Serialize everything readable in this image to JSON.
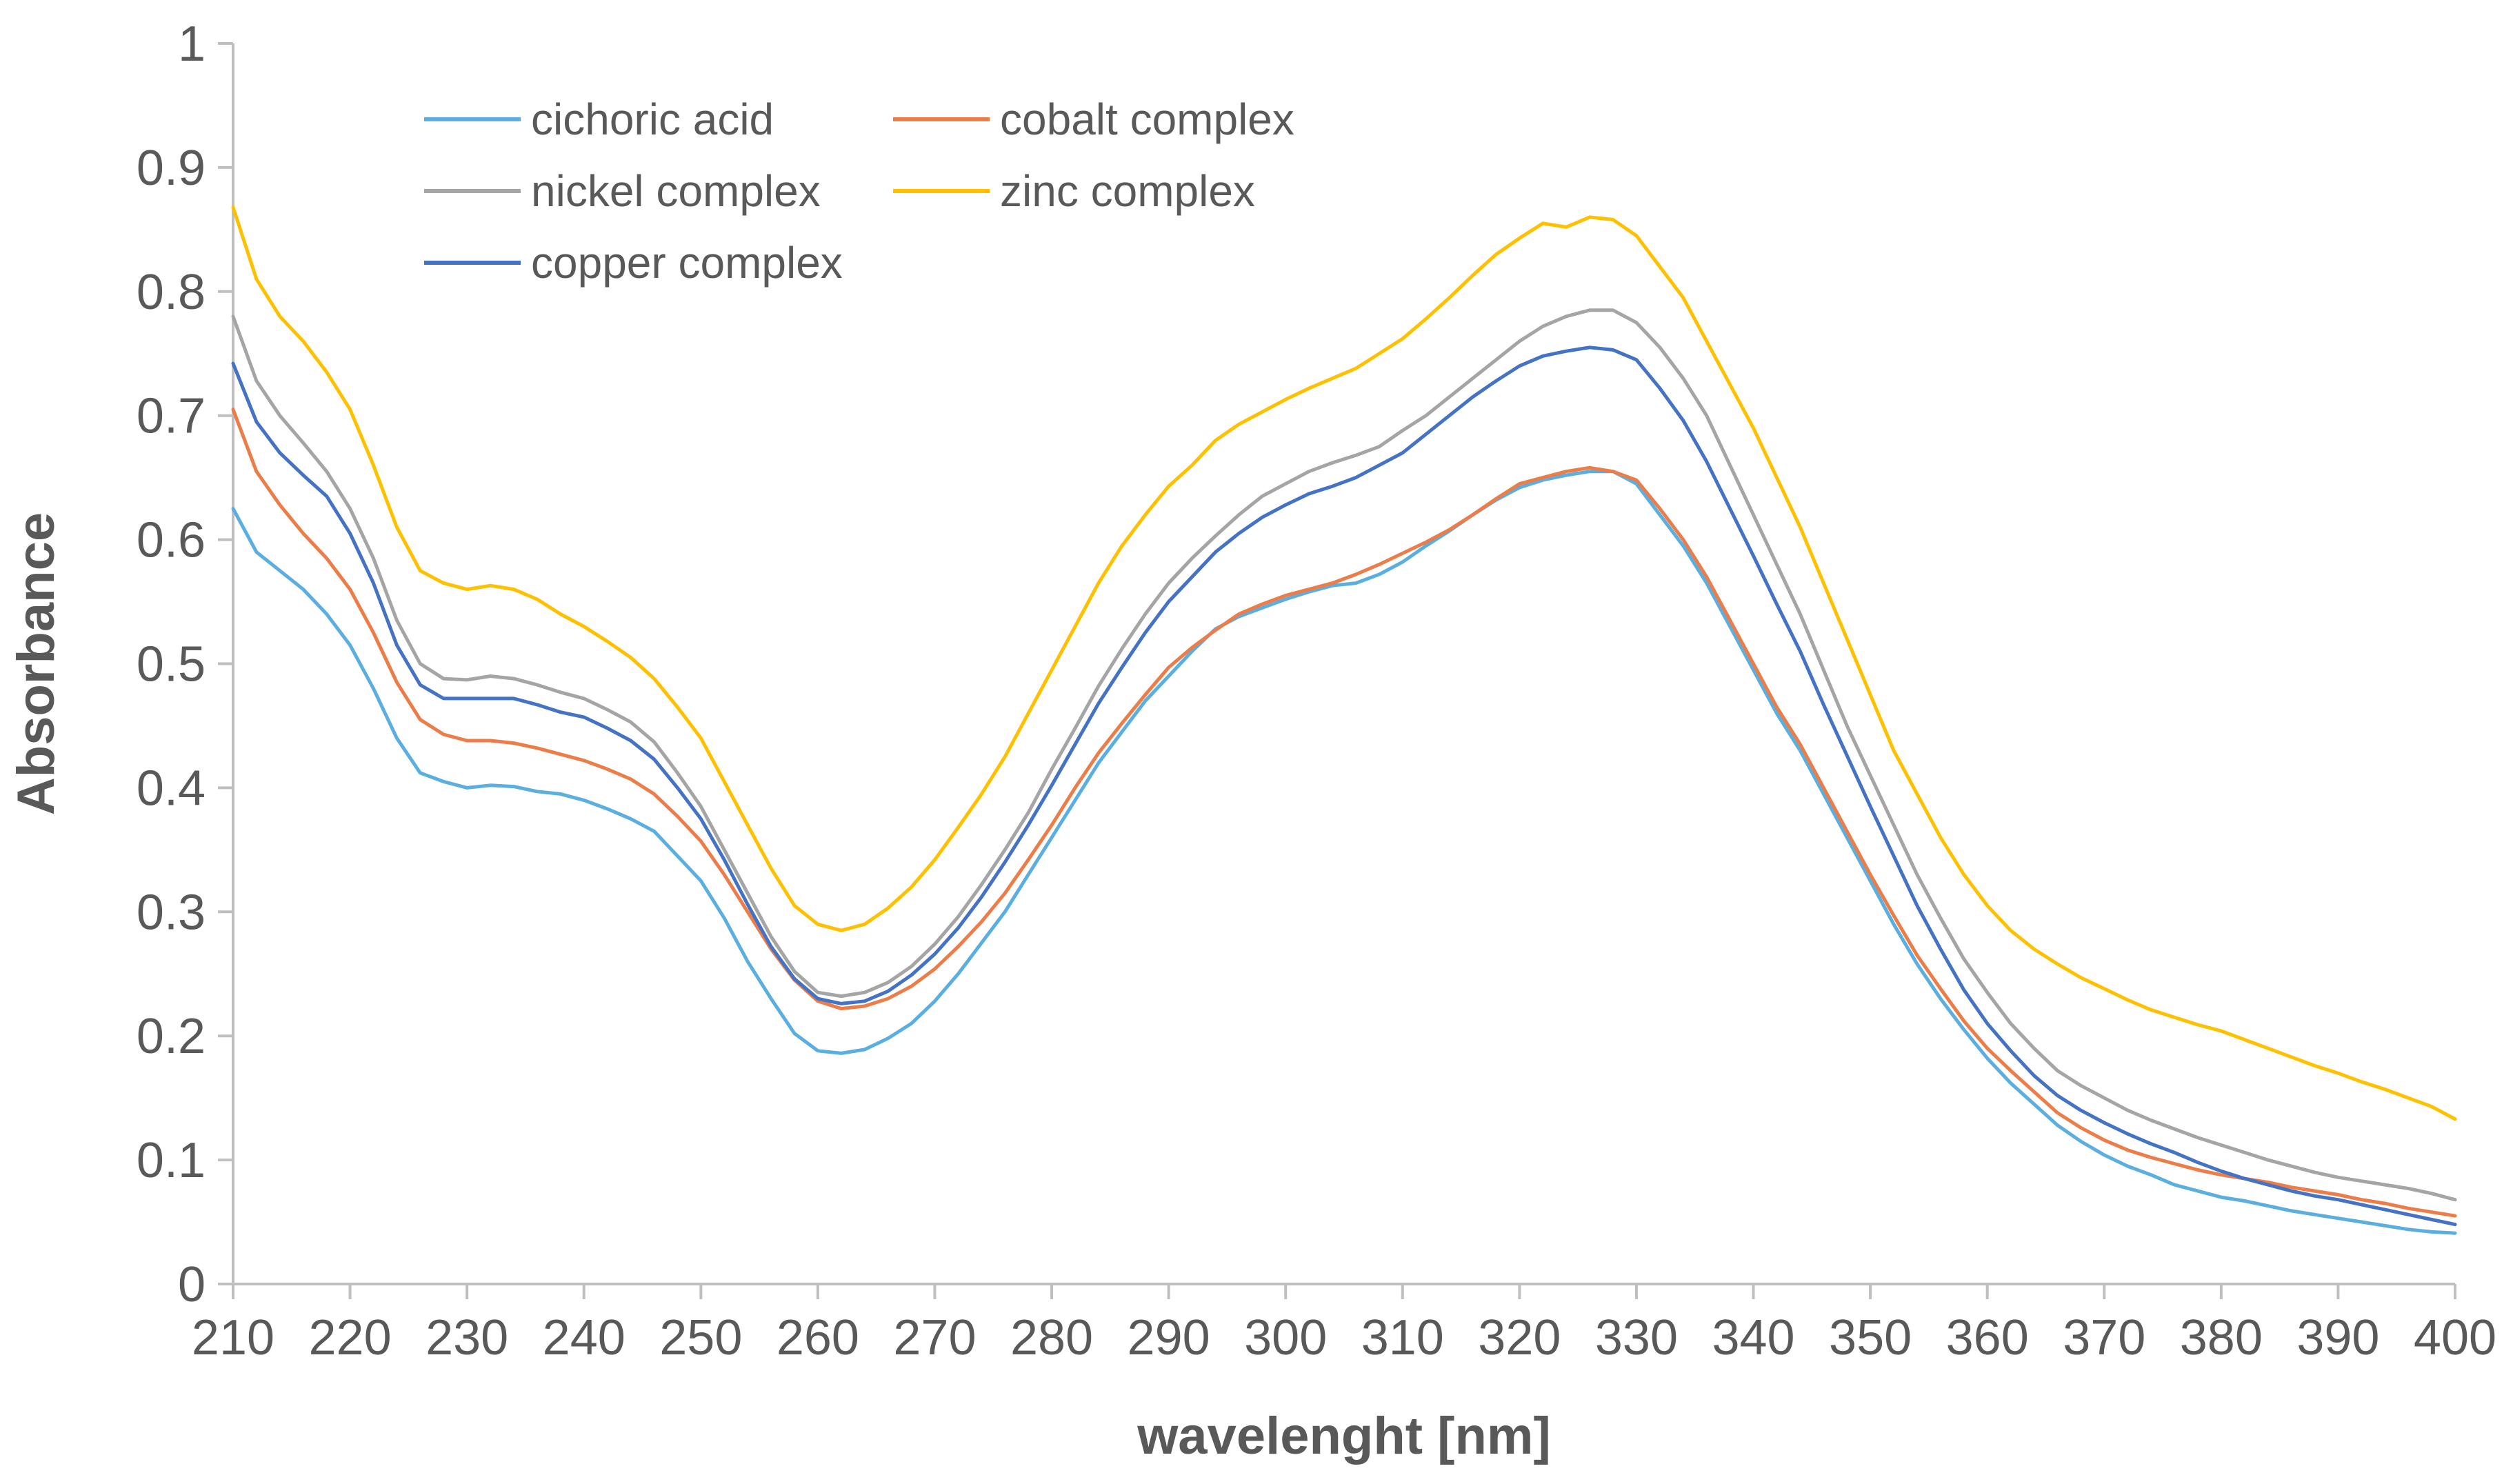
{
  "chart_data": {
    "type": "line",
    "title": "",
    "xlabel": "wavelenght [nm]",
    "ylabel": "Absorbance",
    "xlim": [
      210,
      400
    ],
    "ylim": [
      0,
      1
    ],
    "x_ticks": [
      210,
      220,
      230,
      240,
      250,
      260,
      270,
      280,
      290,
      300,
      310,
      320,
      330,
      340,
      350,
      360,
      370,
      380,
      390,
      400
    ],
    "y_ticks": [
      "0",
      "0.1",
      "0.2",
      "0.3",
      "0.4",
      "0.5",
      "0.6",
      "0.7",
      "0.8",
      "0.9",
      "1"
    ],
    "grid": false,
    "legend_position": "top-left",
    "x": [
      210,
      212,
      214,
      216,
      218,
      220,
      222,
      224,
      226,
      228,
      230,
      232,
      234,
      236,
      238,
      240,
      242,
      244,
      246,
      248,
      250,
      252,
      254,
      256,
      258,
      260,
      262,
      264,
      266,
      268,
      270,
      272,
      274,
      276,
      278,
      280,
      282,
      284,
      286,
      288,
      290,
      292,
      294,
      296,
      298,
      300,
      302,
      304,
      306,
      308,
      310,
      312,
      314,
      316,
      318,
      320,
      322,
      324,
      326,
      328,
      330,
      332,
      334,
      336,
      338,
      340,
      342,
      344,
      346,
      348,
      350,
      352,
      354,
      356,
      358,
      360,
      362,
      364,
      366,
      368,
      370,
      372,
      374,
      376,
      378,
      380,
      382,
      384,
      386,
      388,
      390,
      392,
      394,
      396,
      398,
      400
    ],
    "series": [
      {
        "name": "cichoric acid",
        "color": "#5aaee0",
        "values": [
          0.625,
          0.59,
          0.575,
          0.56,
          0.54,
          0.515,
          0.48,
          0.44,
          0.412,
          0.405,
          0.4,
          0.402,
          0.401,
          0.397,
          0.395,
          0.39,
          0.383,
          0.375,
          0.365,
          0.345,
          0.325,
          0.295,
          0.26,
          0.23,
          0.202,
          0.188,
          0.186,
          0.189,
          0.198,
          0.21,
          0.228,
          0.25,
          0.275,
          0.3,
          0.33,
          0.36,
          0.39,
          0.42,
          0.445,
          0.47,
          0.49,
          0.51,
          0.528,
          0.538,
          0.545,
          0.552,
          0.558,
          0.563,
          0.565,
          0.572,
          0.582,
          0.595,
          0.607,
          0.62,
          0.632,
          0.642,
          0.648,
          0.652,
          0.655,
          0.655,
          0.645,
          0.62,
          0.595,
          0.565,
          0.53,
          0.495,
          0.46,
          0.43,
          0.395,
          0.36,
          0.325,
          0.29,
          0.258,
          0.23,
          0.205,
          0.182,
          0.162,
          0.145,
          0.128,
          0.115,
          0.104,
          0.095,
          0.088,
          0.08,
          0.075,
          0.07,
          0.067,
          0.063,
          0.059,
          0.056,
          0.053,
          0.05,
          0.047,
          0.044,
          0.042,
          0.041
        ]
      },
      {
        "name": "cobalt complex",
        "color": "#ed7d48",
        "values": [
          0.705,
          0.655,
          0.628,
          0.605,
          0.585,
          0.56,
          0.525,
          0.485,
          0.455,
          0.443,
          0.438,
          0.438,
          0.436,
          0.432,
          0.427,
          0.422,
          0.415,
          0.407,
          0.395,
          0.377,
          0.357,
          0.33,
          0.3,
          0.27,
          0.245,
          0.228,
          0.222,
          0.224,
          0.23,
          0.24,
          0.254,
          0.272,
          0.292,
          0.315,
          0.342,
          0.37,
          0.4,
          0.428,
          0.452,
          0.475,
          0.497,
          0.513,
          0.527,
          0.54,
          0.548,
          0.555,
          0.56,
          0.565,
          0.572,
          0.58,
          0.589,
          0.598,
          0.608,
          0.62,
          0.633,
          0.645,
          0.65,
          0.655,
          0.658,
          0.655,
          0.648,
          0.625,
          0.6,
          0.57,
          0.535,
          0.5,
          0.465,
          0.435,
          0.4,
          0.365,
          0.33,
          0.297,
          0.265,
          0.238,
          0.212,
          0.19,
          0.172,
          0.155,
          0.138,
          0.126,
          0.116,
          0.108,
          0.102,
          0.097,
          0.092,
          0.088,
          0.085,
          0.082,
          0.078,
          0.075,
          0.072,
          0.068,
          0.065,
          0.061,
          0.058,
          0.055
        ]
      },
      {
        "name": "nickel complex",
        "color": "#a5a5a5",
        "values": [
          0.78,
          0.728,
          0.7,
          0.678,
          0.655,
          0.625,
          0.585,
          0.535,
          0.5,
          0.488,
          0.487,
          0.49,
          0.488,
          0.483,
          0.477,
          0.472,
          0.463,
          0.453,
          0.437,
          0.412,
          0.385,
          0.35,
          0.315,
          0.28,
          0.252,
          0.235,
          0.232,
          0.235,
          0.243,
          0.256,
          0.274,
          0.296,
          0.322,
          0.35,
          0.38,
          0.415,
          0.448,
          0.482,
          0.512,
          0.54,
          0.565,
          0.585,
          0.603,
          0.62,
          0.635,
          0.645,
          0.655,
          0.662,
          0.668,
          0.675,
          0.688,
          0.7,
          0.715,
          0.73,
          0.745,
          0.76,
          0.772,
          0.78,
          0.785,
          0.785,
          0.775,
          0.755,
          0.73,
          0.7,
          0.66,
          0.62,
          0.58,
          0.54,
          0.495,
          0.45,
          0.41,
          0.37,
          0.33,
          0.295,
          0.262,
          0.235,
          0.21,
          0.19,
          0.172,
          0.16,
          0.15,
          0.14,
          0.132,
          0.125,
          0.118,
          0.112,
          0.106,
          0.1,
          0.095,
          0.09,
          0.086,
          0.083,
          0.08,
          0.077,
          0.073,
          0.068
        ]
      },
      {
        "name": "zinc complex",
        "color": "#ffc000",
        "values": [
          0.868,
          0.81,
          0.78,
          0.76,
          0.735,
          0.705,
          0.66,
          0.61,
          0.575,
          0.565,
          0.56,
          0.563,
          0.56,
          0.552,
          0.54,
          0.53,
          0.518,
          0.505,
          0.488,
          0.465,
          0.44,
          0.405,
          0.37,
          0.335,
          0.305,
          0.29,
          0.285,
          0.29,
          0.303,
          0.32,
          0.342,
          0.368,
          0.395,
          0.425,
          0.46,
          0.495,
          0.53,
          0.565,
          0.595,
          0.62,
          0.643,
          0.66,
          0.68,
          0.693,
          0.703,
          0.713,
          0.722,
          0.73,
          0.738,
          0.75,
          0.762,
          0.778,
          0.795,
          0.813,
          0.83,
          0.843,
          0.855,
          0.852,
          0.86,
          0.858,
          0.845,
          0.82,
          0.795,
          0.76,
          0.725,
          0.69,
          0.65,
          0.61,
          0.565,
          0.52,
          0.475,
          0.43,
          0.395,
          0.36,
          0.33,
          0.305,
          0.285,
          0.27,
          0.258,
          0.247,
          0.238,
          0.229,
          0.221,
          0.215,
          0.209,
          0.204,
          0.197,
          0.19,
          0.183,
          0.176,
          0.17,
          0.163,
          0.157,
          0.15,
          0.143,
          0.133
        ]
      },
      {
        "name": "copper complex",
        "color": "#4472c4",
        "values": [
          0.742,
          0.695,
          0.67,
          0.652,
          0.635,
          0.605,
          0.565,
          0.515,
          0.483,
          0.472,
          0.472,
          0.472,
          0.472,
          0.467,
          0.461,
          0.457,
          0.448,
          0.438,
          0.423,
          0.4,
          0.375,
          0.342,
          0.306,
          0.272,
          0.246,
          0.23,
          0.226,
          0.228,
          0.236,
          0.249,
          0.266,
          0.287,
          0.312,
          0.34,
          0.37,
          0.402,
          0.435,
          0.468,
          0.497,
          0.525,
          0.55,
          0.57,
          0.59,
          0.605,
          0.618,
          0.628,
          0.637,
          0.643,
          0.65,
          0.66,
          0.67,
          0.685,
          0.7,
          0.715,
          0.728,
          0.74,
          0.748,
          0.752,
          0.755,
          0.753,
          0.745,
          0.722,
          0.696,
          0.663,
          0.625,
          0.587,
          0.548,
          0.51,
          0.467,
          0.426,
          0.385,
          0.345,
          0.305,
          0.27,
          0.237,
          0.21,
          0.188,
          0.168,
          0.152,
          0.14,
          0.13,
          0.121,
          0.113,
          0.106,
          0.098,
          0.091,
          0.085,
          0.08,
          0.075,
          0.071,
          0.068,
          0.064,
          0.06,
          0.056,
          0.052,
          0.048
        ]
      }
    ]
  }
}
